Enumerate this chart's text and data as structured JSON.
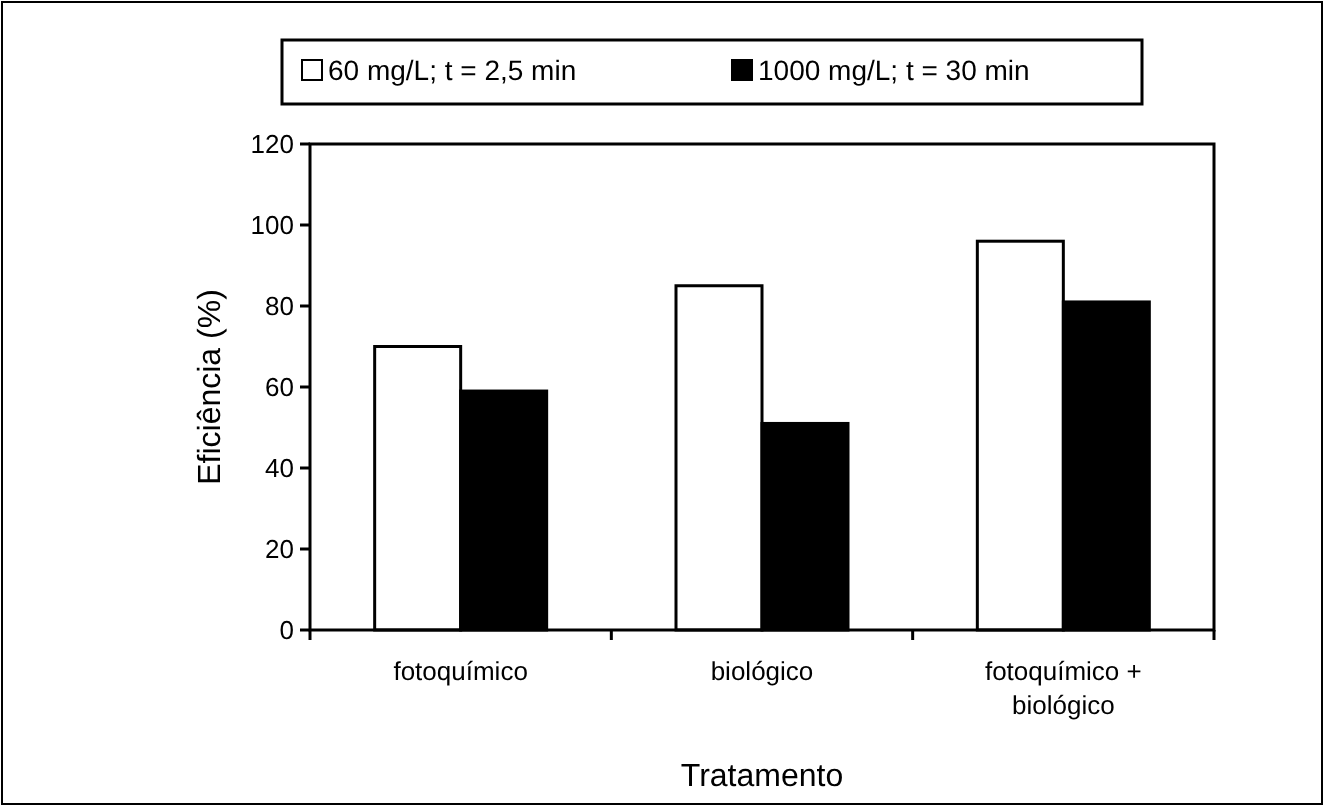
{
  "chart_data": {
    "type": "bar",
    "xlabel": "Tratamento",
    "ylabel": "Eficiência (%)",
    "categories": [
      "fotoquímico",
      "biológico",
      "fotoquímico + biológico"
    ],
    "series": [
      {
        "name": "60 mg/L; t = 2,5 min",
        "color": "#ffffff",
        "values": [
          70,
          85,
          96
        ]
      },
      {
        "name": "1000 mg/L; t = 30 min",
        "color": "#000000",
        "values": [
          59,
          51,
          81
        ]
      }
    ],
    "ylim": [
      0,
      120
    ],
    "yticks": [
      0,
      20,
      40,
      60,
      80,
      100,
      120
    ],
    "grid": false,
    "legend": "top"
  }
}
